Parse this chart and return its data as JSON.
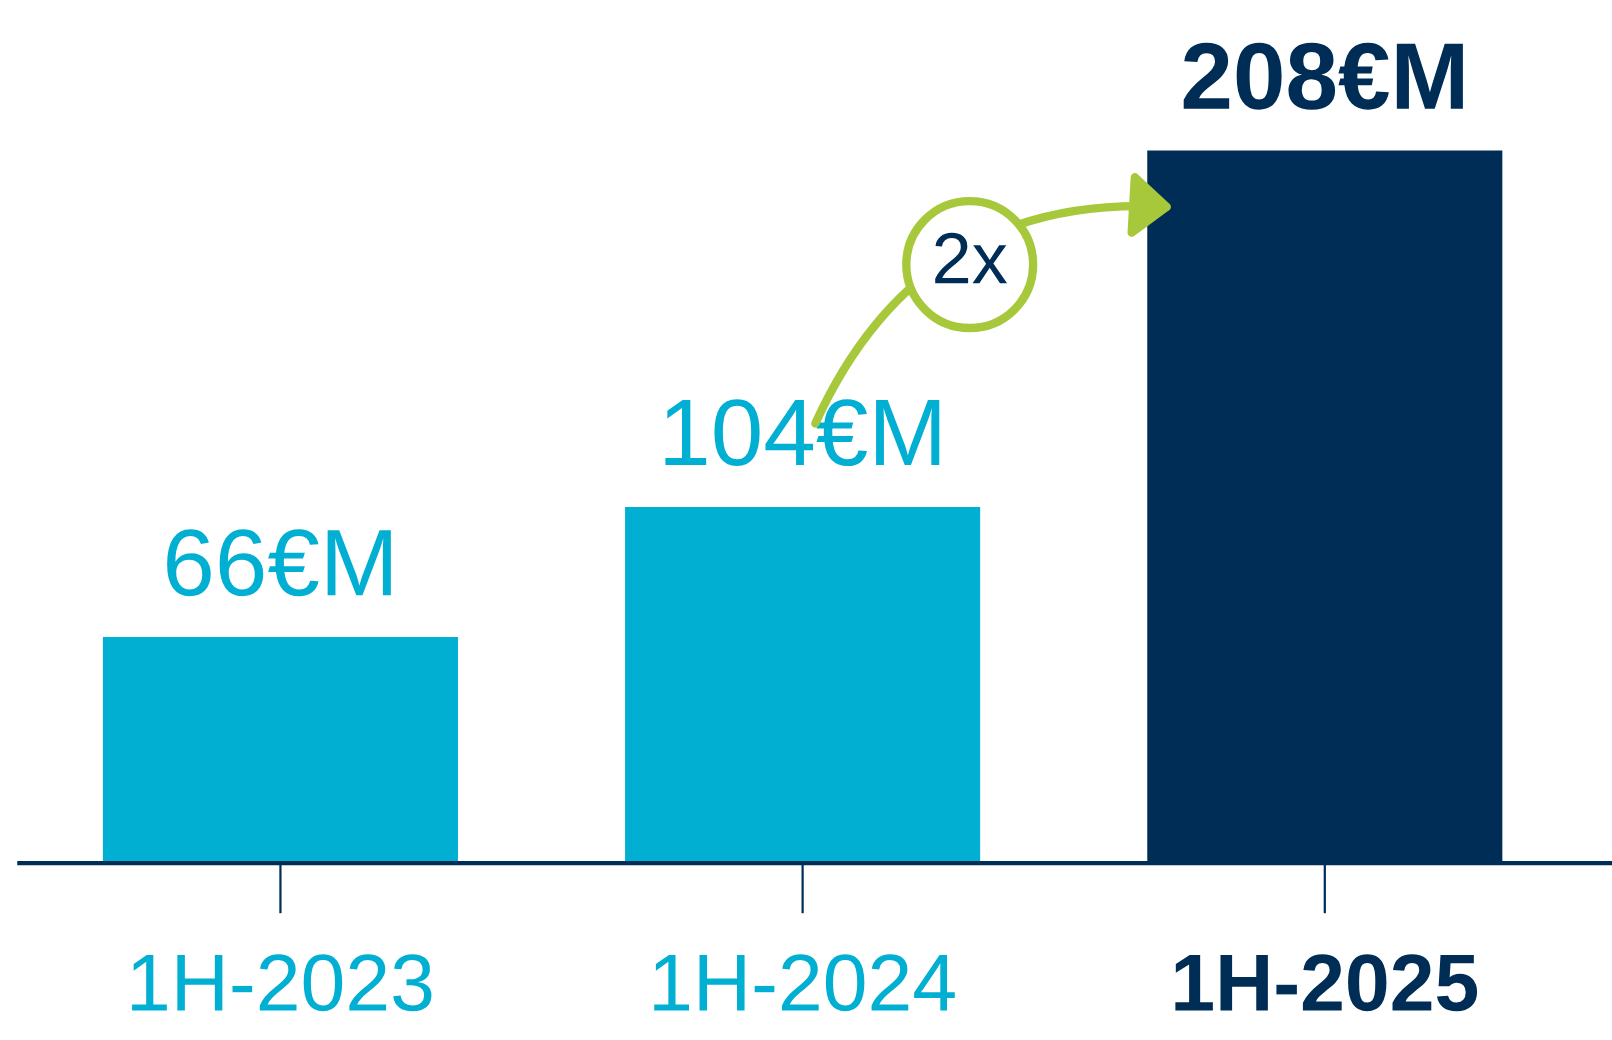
{
  "chart_data": {
    "type": "bar",
    "categories": [
      "1H-2023",
      "1H-2024",
      "1H-2025"
    ],
    "values": [
      66,
      104,
      208
    ],
    "colors": [
      "#00afd2",
      "#00afd2",
      "#002d56"
    ],
    "value_labels": [
      "66€M",
      "104€M",
      "208€M"
    ],
    "annotations": [
      "2x"
    ],
    "grid": false,
    "legend": false
  }
}
